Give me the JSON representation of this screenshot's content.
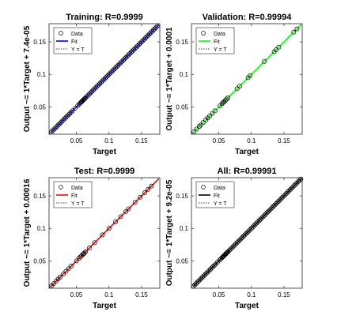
{
  "chart_data": [
    {
      "type": "scatter",
      "title": "Training: R=0.9999",
      "xlabel": "Target",
      "ylabel": "Output ~= 1*Target + 7.4e-05",
      "xlim": [
        0.008,
        0.178
      ],
      "ylim": [
        0.008,
        0.178
      ],
      "xticks": [
        "0.05",
        "0.1",
        "0.15"
      ],
      "yticks": [
        "0.05",
        "0.1",
        "0.15"
      ],
      "fit_color": "#0000ff",
      "legend": [
        "Data",
        "Fit",
        "Y = T"
      ],
      "legend_position": "top-left",
      "series": [
        {
          "name": "Data",
          "x": [
            0.012,
            0.014,
            0.016,
            0.018,
            0.02,
            0.022,
            0.024,
            0.026,
            0.028,
            0.03,
            0.032,
            0.034,
            0.036,
            0.038,
            0.04,
            0.042,
            0.044,
            0.048,
            0.052,
            0.054,
            0.056,
            0.057,
            0.058,
            0.059,
            0.06,
            0.061,
            0.062,
            0.063,
            0.064,
            0.066,
            0.068,
            0.07,
            0.072,
            0.074,
            0.076,
            0.078,
            0.08,
            0.082,
            0.084,
            0.086,
            0.088,
            0.09,
            0.092,
            0.094,
            0.096,
            0.098,
            0.1,
            0.102,
            0.104,
            0.106,
            0.108,
            0.11,
            0.112,
            0.114,
            0.116,
            0.118,
            0.12,
            0.122,
            0.124,
            0.126,
            0.128,
            0.13,
            0.132,
            0.134,
            0.136,
            0.138,
            0.14,
            0.142,
            0.144,
            0.146,
            0.148,
            0.15,
            0.152,
            0.154,
            0.156,
            0.158,
            0.16,
            0.162,
            0.164,
            0.166,
            0.168,
            0.17,
            0.172,
            0.174
          ]
        }
      ]
    },
    {
      "type": "scatter",
      "title": "Validation: R=0.99994",
      "xlabel": "Target",
      "ylabel": "Output ~= 1*Target + 0.0001",
      "xlim": [
        0.008,
        0.178
      ],
      "ylim": [
        0.008,
        0.178
      ],
      "xticks": [
        "0.05",
        "0.1",
        "0.15"
      ],
      "yticks": [
        "0.05",
        "0.1",
        "0.15"
      ],
      "fit_color": "#00ff00",
      "legend": [
        "Data",
        "Fit",
        "Y = T"
      ],
      "legend_position": "top-left",
      "series": [
        {
          "name": "Data",
          "x": [
            0.012,
            0.016,
            0.02,
            0.022,
            0.026,
            0.03,
            0.033,
            0.036,
            0.04,
            0.044,
            0.052,
            0.055,
            0.057,
            0.058,
            0.06,
            0.062,
            0.064,
            0.078,
            0.082,
            0.095,
            0.098,
            0.12,
            0.135,
            0.138,
            0.142,
            0.165,
            0.17
          ]
        }
      ]
    },
    {
      "type": "scatter",
      "title": "Test: R=0.9999",
      "xlabel": "Target",
      "ylabel": "Output ~= 1*Target + 0.00016",
      "xlim": [
        0.008,
        0.178
      ],
      "ylim": [
        0.008,
        0.178
      ],
      "xticks": [
        "0.05",
        "0.1",
        "0.15"
      ],
      "yticks": [
        "0.05",
        "0.1",
        "0.15"
      ],
      "fit_color": "#ff0000",
      "legend": [
        "Data",
        "Fit",
        "Y = T"
      ],
      "legend_position": "top-left",
      "series": [
        {
          "name": "Data",
          "x": [
            0.012,
            0.015,
            0.019,
            0.022,
            0.025,
            0.03,
            0.034,
            0.038,
            0.042,
            0.05,
            0.054,
            0.056,
            0.058,
            0.06,
            0.061,
            0.062,
            0.064,
            0.07,
            0.078,
            0.09,
            0.1,
            0.11,
            0.118,
            0.126,
            0.13,
            0.14,
            0.148,
            0.155,
            0.16,
            0.165
          ]
        }
      ]
    },
    {
      "type": "scatter",
      "title": "All: R=0.99991",
      "xlabel": "Target",
      "ylabel": "Output ~= 1*Target + 9.2e-05",
      "xlim": [
        0.008,
        0.178
      ],
      "ylim": [
        0.008,
        0.178
      ],
      "xticks": [
        "0.05",
        "0.1",
        "0.15"
      ],
      "yticks": [
        "0.05",
        "0.1",
        "0.15"
      ],
      "fit_color": "#000000",
      "legend": [
        "Data",
        "Fit",
        "Y = T"
      ],
      "legend_position": "top-left",
      "series": [
        {
          "name": "Data",
          "x": [
            0.011,
            0.013,
            0.015,
            0.017,
            0.019,
            0.021,
            0.023,
            0.025,
            0.027,
            0.029,
            0.031,
            0.033,
            0.035,
            0.037,
            0.039,
            0.041,
            0.043,
            0.045,
            0.048,
            0.051,
            0.053,
            0.055,
            0.056,
            0.057,
            0.058,
            0.059,
            0.06,
            0.061,
            0.062,
            0.063,
            0.064,
            0.066,
            0.068,
            0.07,
            0.072,
            0.074,
            0.076,
            0.078,
            0.08,
            0.082,
            0.084,
            0.086,
            0.088,
            0.09,
            0.092,
            0.094,
            0.096,
            0.098,
            0.1,
            0.102,
            0.104,
            0.106,
            0.108,
            0.11,
            0.112,
            0.114,
            0.116,
            0.118,
            0.12,
            0.122,
            0.124,
            0.126,
            0.128,
            0.13,
            0.132,
            0.134,
            0.136,
            0.138,
            0.14,
            0.142,
            0.144,
            0.146,
            0.148,
            0.15,
            0.152,
            0.154,
            0.156,
            0.158,
            0.16,
            0.162,
            0.164,
            0.166,
            0.168,
            0.17,
            0.172,
            0.174,
            0.176
          ]
        }
      ]
    }
  ]
}
